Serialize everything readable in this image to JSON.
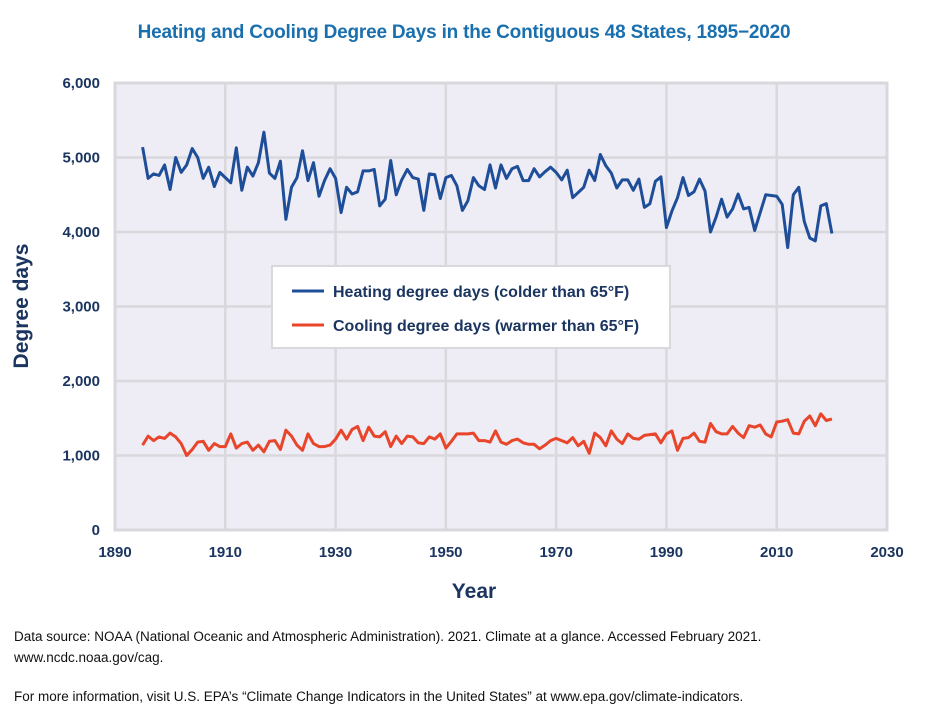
{
  "chart_data": {
    "type": "line",
    "title": "Heating and Cooling Degree Days in the Contiguous 48 States, 1895−2020",
    "xlabel": "Year",
    "ylabel": "Degree days",
    "xlim": [
      1890,
      2030
    ],
    "ylim": [
      0,
      6000
    ],
    "xticks": [
      1890,
      1910,
      1930,
      1950,
      1970,
      1990,
      2010,
      2030
    ],
    "xtick_labels": [
      "1890",
      "1910",
      "1930",
      "1950",
      "1970",
      "1990",
      "2010",
      "2030"
    ],
    "yticks": [
      0,
      1000,
      2000,
      3000,
      4000,
      5000,
      6000
    ],
    "ytick_labels": [
      "0",
      "1,000",
      "2,000",
      "3,000",
      "4,000",
      "5,000",
      "6,000"
    ],
    "grid": true,
    "legend_placement": "center",
    "x_start": 1895,
    "series": [
      {
        "name": "Heating degree days (colder than 65°F)",
        "color": "#1f4e99",
        "values": [
          5140,
          4720,
          4780,
          4760,
          4900,
          4570,
          5000,
          4800,
          4900,
          5120,
          5000,
          4720,
          4870,
          4610,
          4800,
          4730,
          4660,
          5130,
          4560,
          4870,
          4750,
          4930,
          5340,
          4790,
          4720,
          4950,
          4170,
          4600,
          4730,
          5090,
          4690,
          4930,
          4480,
          4690,
          4850,
          4720,
          4260,
          4600,
          4510,
          4540,
          4820,
          4820,
          4840,
          4350,
          4440,
          4960,
          4500,
          4700,
          4840,
          4730,
          4710,
          4290,
          4780,
          4770,
          4450,
          4730,
          4760,
          4620,
          4290,
          4420,
          4730,
          4620,
          4570,
          4900,
          4590,
          4900,
          4720,
          4850,
          4880,
          4690,
          4690,
          4850,
          4740,
          4810,
          4870,
          4800,
          4700,
          4830,
          4460,
          4530,
          4600,
          4830,
          4690,
          5040,
          4890,
          4790,
          4590,
          4700,
          4700,
          4560,
          4710,
          4330,
          4380,
          4680,
          4740,
          4060,
          4280,
          4460,
          4730,
          4490,
          4540,
          4710,
          4550,
          4000,
          4200,
          4440,
          4200,
          4310,
          4510,
          4310,
          4330,
          4020,
          4260,
          4500,
          4490,
          4480,
          4370,
          3790,
          4500,
          4600,
          4140,
          3920,
          3880,
          4350,
          4380,
          3980
        ]
      },
      {
        "name": "Cooling degree days (warmer than 65°F)",
        "color": "#e8452a",
        "values": [
          1140,
          1260,
          1200,
          1250,
          1230,
          1300,
          1250,
          1160,
          1000,
          1080,
          1180,
          1190,
          1070,
          1160,
          1120,
          1120,
          1290,
          1100,
          1160,
          1180,
          1070,
          1140,
          1050,
          1190,
          1200,
          1080,
          1340,
          1260,
          1140,
          1070,
          1290,
          1160,
          1120,
          1120,
          1140,
          1220,
          1340,
          1220,
          1350,
          1390,
          1200,
          1380,
          1260,
          1250,
          1320,
          1120,
          1260,
          1160,
          1260,
          1250,
          1170,
          1160,
          1250,
          1220,
          1290,
          1100,
          1190,
          1290,
          1290,
          1290,
          1300,
          1200,
          1200,
          1180,
          1330,
          1180,
          1150,
          1200,
          1220,
          1170,
          1150,
          1150,
          1090,
          1140,
          1200,
          1230,
          1200,
          1170,
          1240,
          1130,
          1190,
          1030,
          1300,
          1240,
          1130,
          1330,
          1220,
          1160,
          1290,
          1230,
          1220,
          1270,
          1280,
          1290,
          1170,
          1290,
          1330,
          1070,
          1230,
          1240,
          1300,
          1190,
          1180,
          1430,
          1320,
          1290,
          1290,
          1390,
          1300,
          1240,
          1400,
          1380,
          1410,
          1290,
          1250,
          1450,
          1460,
          1480,
          1300,
          1290,
          1460,
          1530,
          1400,
          1560,
          1470,
          1490
        ]
      }
    ]
  },
  "footer": {
    "source": "Data source: NOAA (National Oceanic and Atmospheric Administration). 2021. Climate at a glance. Accessed February 2021. www.ncdc.noaa.gov/cag.",
    "info": "For more information, visit U.S. EPA’s “Climate Change Indicators in the United States” at www.epa.gov/climate-indicators."
  }
}
